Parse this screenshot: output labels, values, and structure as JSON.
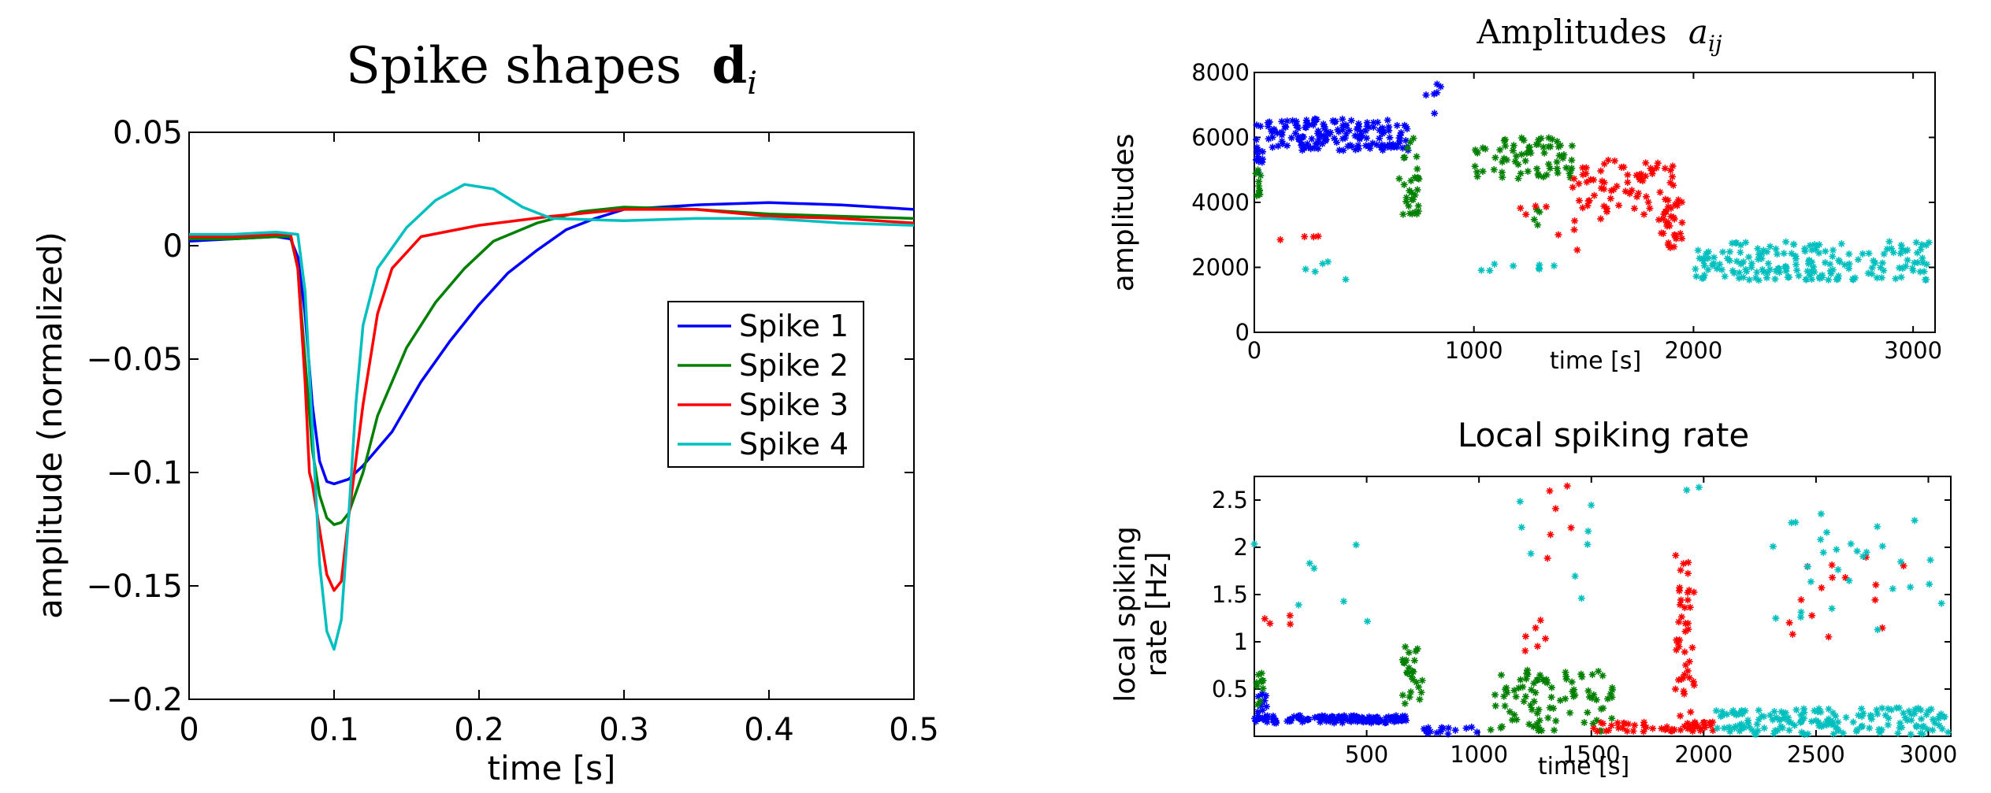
{
  "chart_data": [
    {
      "type": "line",
      "title": "Spike shapes",
      "title_symbol": "d",
      "title_subscript": "i",
      "xlabel": "time [s]",
      "ylabel": "amplitude (normalized)",
      "xlim": [
        0,
        0.5
      ],
      "ylim": [
        -0.2,
        0.05
      ],
      "xticks": [
        0,
        0.1,
        0.2,
        0.3,
        0.4,
        0.5
      ],
      "yticks": [
        -0.2,
        -0.15,
        -0.1,
        -0.05,
        0,
        0.05
      ],
      "xtick_labels": [
        "0",
        "0.1",
        "0.2",
        "0.3",
        "0.4",
        "0.5"
      ],
      "ytick_labels": [
        "−0.2",
        "−0.15",
        "−0.1",
        "−0.05",
        "0",
        "0.05"
      ],
      "grid": false,
      "legend": "center-right",
      "series": [
        {
          "name": "Spike 1",
          "color": "#0000ff",
          "points": [
            [
              0,
              0.002
            ],
            [
              0.03,
              0.003
            ],
            [
              0.06,
              0.004
            ],
            [
              0.07,
              0.003
            ],
            [
              0.075,
              -0.005
            ],
            [
              0.08,
              -0.03
            ],
            [
              0.085,
              -0.07
            ],
            [
              0.09,
              -0.095
            ],
            [
              0.095,
              -0.104
            ],
            [
              0.1,
              -0.105
            ],
            [
              0.11,
              -0.103
            ],
            [
              0.12,
              -0.097
            ],
            [
              0.14,
              -0.082
            ],
            [
              0.16,
              -0.06
            ],
            [
              0.18,
              -0.042
            ],
            [
              0.2,
              -0.026
            ],
            [
              0.22,
              -0.012
            ],
            [
              0.24,
              -0.002
            ],
            [
              0.26,
              0.007
            ],
            [
              0.28,
              0.012
            ],
            [
              0.3,
              0.016
            ],
            [
              0.35,
              0.018
            ],
            [
              0.4,
              0.019
            ],
            [
              0.45,
              0.018
            ],
            [
              0.5,
              0.016
            ]
          ]
        },
        {
          "name": "Spike 2",
          "color": "#008000",
          "points": [
            [
              0,
              0.003
            ],
            [
              0.03,
              0.003
            ],
            [
              0.06,
              0.004
            ],
            [
              0.07,
              0.004
            ],
            [
              0.075,
              -0.01
            ],
            [
              0.08,
              -0.05
            ],
            [
              0.085,
              -0.09
            ],
            [
              0.09,
              -0.11
            ],
            [
              0.095,
              -0.12
            ],
            [
              0.1,
              -0.123
            ],
            [
              0.105,
              -0.122
            ],
            [
              0.11,
              -0.118
            ],
            [
              0.12,
              -0.1
            ],
            [
              0.13,
              -0.075
            ],
            [
              0.15,
              -0.045
            ],
            [
              0.17,
              -0.025
            ],
            [
              0.19,
              -0.01
            ],
            [
              0.21,
              0.002
            ],
            [
              0.24,
              0.01
            ],
            [
              0.27,
              0.015
            ],
            [
              0.3,
              0.017
            ],
            [
              0.35,
              0.016
            ],
            [
              0.4,
              0.014
            ],
            [
              0.45,
              0.013
            ],
            [
              0.5,
              0.012
            ]
          ]
        },
        {
          "name": "Spike 3",
          "color": "#ff0000",
          "points": [
            [
              0,
              0.004
            ],
            [
              0.03,
              0.004
            ],
            [
              0.06,
              0.005
            ],
            [
              0.07,
              0.005
            ],
            [
              0.075,
              -0.01
            ],
            [
              0.08,
              -0.06
            ],
            [
              0.083,
              -0.1
            ],
            [
              0.085,
              -0.105
            ],
            [
              0.09,
              -0.125
            ],
            [
              0.095,
              -0.145
            ],
            [
              0.1,
              -0.152
            ],
            [
              0.105,
              -0.148
            ],
            [
              0.11,
              -0.12
            ],
            [
              0.12,
              -0.07
            ],
            [
              0.13,
              -0.03
            ],
            [
              0.14,
              -0.01
            ],
            [
              0.16,
              0.004
            ],
            [
              0.2,
              0.009
            ],
            [
              0.25,
              0.013
            ],
            [
              0.3,
              0.016
            ],
            [
              0.35,
              0.016
            ],
            [
              0.4,
              0.013
            ],
            [
              0.45,
              0.012
            ],
            [
              0.5,
              0.01
            ]
          ]
        },
        {
          "name": "Spike 4",
          "color": "#00bfbf",
          "points": [
            [
              0,
              0.005
            ],
            [
              0.03,
              0.005
            ],
            [
              0.06,
              0.006
            ],
            [
              0.075,
              0.005
            ],
            [
              0.08,
              -0.02
            ],
            [
              0.085,
              -0.08
            ],
            [
              0.09,
              -0.14
            ],
            [
              0.095,
              -0.17
            ],
            [
              0.1,
              -0.178
            ],
            [
              0.105,
              -0.165
            ],
            [
              0.11,
              -0.12
            ],
            [
              0.115,
              -0.07
            ],
            [
              0.12,
              -0.035
            ],
            [
              0.13,
              -0.01
            ],
            [
              0.15,
              0.008
            ],
            [
              0.17,
              0.02
            ],
            [
              0.19,
              0.027
            ],
            [
              0.21,
              0.025
            ],
            [
              0.23,
              0.017
            ],
            [
              0.25,
              0.012
            ],
            [
              0.3,
              0.011
            ],
            [
              0.35,
              0.012
            ],
            [
              0.4,
              0.012
            ],
            [
              0.45,
              0.01
            ],
            [
              0.5,
              0.009
            ]
          ]
        }
      ]
    },
    {
      "type": "scatter",
      "title": "Amplitudes",
      "title_symbol": "a",
      "title_subscript": "ij",
      "xlabel": "time [s]",
      "ylabel": "amplitudes",
      "xlim": [
        0,
        3100
      ],
      "ylim": [
        0,
        8000
      ],
      "xticks": [
        0,
        1000,
        2000,
        3000
      ],
      "yticks": [
        0,
        2000,
        4000,
        6000,
        8000
      ],
      "xtick_labels": [
        "0",
        "1000",
        "2000",
        "3000"
      ],
      "ytick_labels": [
        "0",
        "2000",
        "4000",
        "6000",
        "8000"
      ],
      "grid": false,
      "marker": "*",
      "series": [
        {
          "color": "#0000ff",
          "clusters": [
            {
              "x": [
                0,
                700
              ],
              "y": [
                5600,
                6600
              ],
              "n": 160
            },
            {
              "x": [
                0,
                40
              ],
              "y": [
                4900,
                5700
              ],
              "n": 10
            },
            {
              "x": [
                780,
                860
              ],
              "y": [
                6700,
                7800
              ],
              "n": 6
            }
          ]
        },
        {
          "color": "#008000",
          "clusters": [
            {
              "x": [
                0,
                30
              ],
              "y": [
                4200,
                5200
              ],
              "n": 10
            },
            {
              "x": [
                660,
                750
              ],
              "y": [
                3600,
                6100
              ],
              "n": 30
            },
            {
              "x": [
                1000,
                1450
              ],
              "y": [
                4700,
                6000
              ],
              "n": 70
            },
            {
              "x": [
                1230,
                1300
              ],
              "y": [
                3200,
                3800
              ],
              "n": 4
            }
          ]
        },
        {
          "color": "#ff0000",
          "clusters": [
            {
              "x": [
                1450,
                1950
              ],
              "y": [
                3600,
                5300
              ],
              "n": 70
            },
            {
              "x": [
                1840,
                1960
              ],
              "y": [
                2600,
                4100
              ],
              "n": 30
            },
            {
              "x": [
                100,
                400
              ],
              "y": [
                2400,
                3100
              ],
              "n": 4
            },
            {
              "x": [
                1100,
                1600
              ],
              "y": [
                2500,
                3900
              ],
              "n": 10
            }
          ]
        },
        {
          "color": "#00bfbf",
          "clusters": [
            {
              "x": [
                2000,
                3080
              ],
              "y": [
                1600,
                2800
              ],
              "n": 180
            },
            {
              "x": [
                0,
                450
              ],
              "y": [
                1600,
                2300
              ],
              "n": 5
            },
            {
              "x": [
                1000,
                1400
              ],
              "y": [
                1900,
                2100
              ],
              "n": 8
            }
          ]
        }
      ]
    },
    {
      "type": "scatter",
      "title": "Local spiking rate",
      "xlabel": "time [s]",
      "ylabel_lines": [
        "local spiking",
        "rate [Hz]"
      ],
      "xlim": [
        0,
        3100
      ],
      "ylim": [
        0,
        2.75
      ],
      "xticks": [
        500,
        1000,
        1500,
        2000,
        2500,
        3000
      ],
      "yticks": [
        0.5,
        1,
        1.5,
        2,
        2.5
      ],
      "xtick_labels": [
        "500",
        "1000",
        "1500",
        "2000",
        "2500",
        "3000"
      ],
      "ytick_labels": [
        "0.5",
        "1",
        "1.5",
        "2",
        "2.5"
      ],
      "grid": false,
      "marker": "*",
      "series": [
        {
          "color": "#0000ff",
          "clusters": [
            {
              "x": [
                0,
                680
              ],
              "y": [
                0.14,
                0.22
              ],
              "n": 140
            },
            {
              "x": [
                0,
                60
              ],
              "y": [
                0.25,
                0.45
              ],
              "n": 10
            },
            {
              "x": [
                750,
                1000
              ],
              "y": [
                0.02,
                0.1
              ],
              "n": 15
            }
          ]
        },
        {
          "color": "#008000",
          "clusters": [
            {
              "x": [
                0,
                40
              ],
              "y": [
                0.3,
                0.7
              ],
              "n": 10
            },
            {
              "x": [
                660,
                750
              ],
              "y": [
                0.3,
                0.95
              ],
              "n": 25
            },
            {
              "x": [
                1050,
                1600
              ],
              "y": [
                0.05,
                0.7
              ],
              "n": 90
            }
          ]
        },
        {
          "color": "#ff0000",
          "clusters": [
            {
              "x": [
                1500,
                2050
              ],
              "y": [
                0.05,
                0.15
              ],
              "n": 50
            },
            {
              "x": [
                1870,
                1960
              ],
              "y": [
                0.05,
                1.95
              ],
              "n": 45
            },
            {
              "x": [
                1200,
                1300
              ],
              "y": [
                0.9,
                1.25
              ],
              "n": 6
            },
            {
              "x": [
                1300,
                1500
              ],
              "y": [
                1.5,
                2.75
              ],
              "n": 6
            },
            {
              "x": [
                0,
                200
              ],
              "y": [
                1.1,
                1.3
              ],
              "n": 4
            },
            {
              "x": [
                2300,
                2900
              ],
              "y": [
                1.0,
                2.0
              ],
              "n": 15
            }
          ]
        },
        {
          "color": "#00bfbf",
          "clusters": [
            {
              "x": [
                2050,
                3100
              ],
              "y": [
                0.02,
                0.3
              ],
              "n": 160
            },
            {
              "x": [
                2300,
                3100
              ],
              "y": [
                1.1,
                2.5
              ],
              "n": 30
            },
            {
              "x": [
                0,
                600
              ],
              "y": [
                1.2,
                2.1
              ],
              "n": 7
            },
            {
              "x": [
                1100,
                1500
              ],
              "y": [
                1.4,
                2.55
              ],
              "n": 8
            },
            {
              "x": [
                1920,
                1990
              ],
              "y": [
                2.6,
                2.75
              ],
              "n": 2
            }
          ]
        }
      ]
    }
  ]
}
